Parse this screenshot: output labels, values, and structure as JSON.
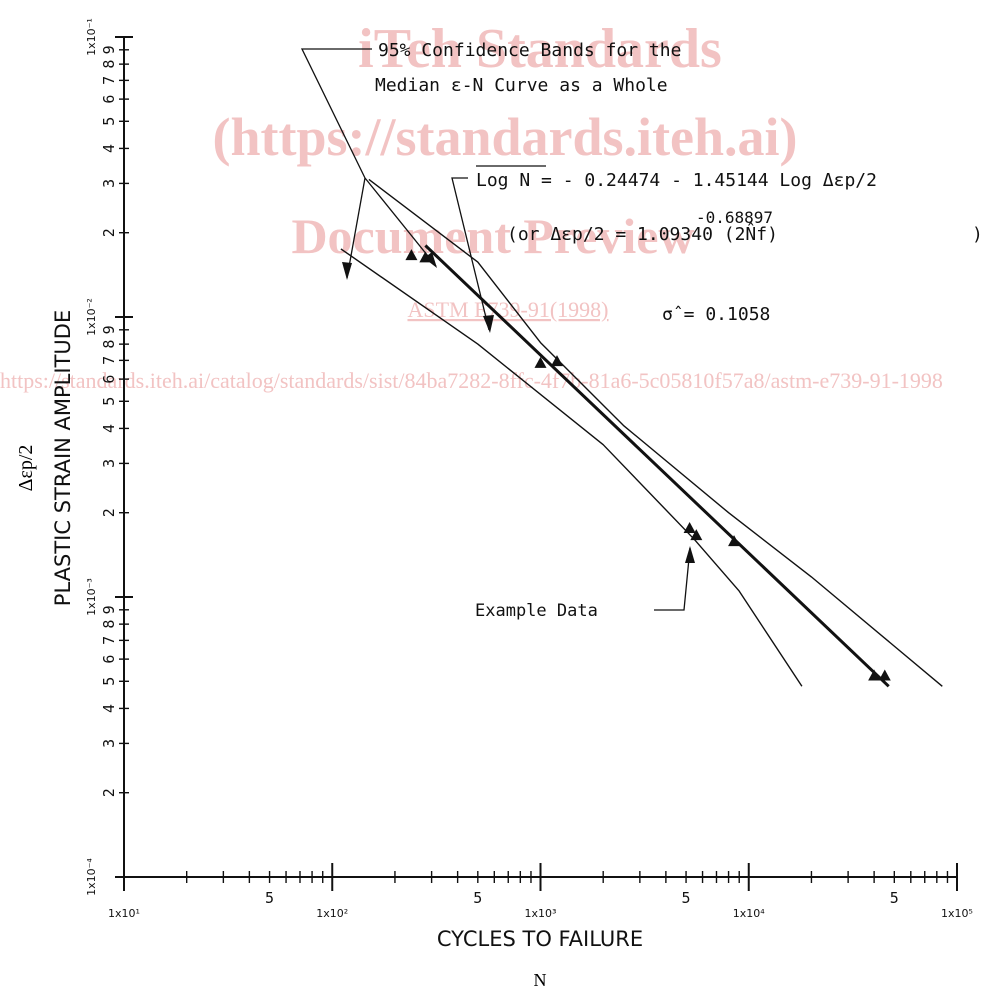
{
  "chart_data": {
    "type": "scatter",
    "x_scale": "log",
    "y_scale": "log",
    "xlim": [
      10,
      100000
    ],
    "ylim": [
      0.0001,
      0.1
    ],
    "xlabel": "CYCLES TO FAILURE",
    "xlabel_sub": "N",
    "ylabel": "PLASTIC STRAIN AMPLITUDE",
    "ylabel_symbol": "Δεp/2",
    "x_decade_labels": [
      "1x10¹",
      "1x10²",
      "1x10³",
      "1x10⁴",
      "1x10⁵"
    ],
    "y_decade_labels": [
      "1x10⁻⁴",
      "1x10⁻³",
      "1x10⁻²",
      "1x10⁻¹"
    ],
    "x_minor_label": "5",
    "y_minor_labels": [
      "2",
      "3",
      "4",
      "5",
      "6",
      "7",
      "8",
      "9"
    ],
    "series": [
      {
        "name": "Example Data",
        "kind": "points",
        "marker": "triangle",
        "points": [
          {
            "x": 240,
            "y": 0.0165
          },
          {
            "x": 280,
            "y": 0.0162
          },
          {
            "x": 1000,
            "y": 0.0068
          },
          {
            "x": 1200,
            "y": 0.0069
          },
          {
            "x": 5200,
            "y": 0.00175
          },
          {
            "x": 5600,
            "y": 0.00165
          },
          {
            "x": 8500,
            "y": 0.00157
          },
          {
            "x": 40000,
            "y": 0.00052
          },
          {
            "x": 45000,
            "y": 0.00052
          }
        ]
      },
      {
        "name": "Median ε-N Curve",
        "kind": "line",
        "points": [
          {
            "x": 280,
            "y": 0.018
          },
          {
            "x": 47000,
            "y": 0.00048
          }
        ]
      },
      {
        "name": "95% Confidence Bands (upper)",
        "kind": "band",
        "points": [
          {
            "x": 150,
            "y": 0.031
          },
          {
            "x": 500,
            "y": 0.0157
          },
          {
            "x": 1000,
            "y": 0.0081
          },
          {
            "x": 2500,
            "y": 0.0041
          },
          {
            "x": 8000,
            "y": 0.002
          },
          {
            "x": 20000,
            "y": 0.00118
          },
          {
            "x": 85000,
            "y": 0.00048
          }
        ]
      },
      {
        "name": "95% Confidence Bands (lower)",
        "kind": "band",
        "points": [
          {
            "x": 110,
            "y": 0.0175
          },
          {
            "x": 500,
            "y": 0.008
          },
          {
            "x": 2000,
            "y": 0.0035
          },
          {
            "x": 5500,
            "y": 0.0016
          },
          {
            "x": 9000,
            "y": 0.00105
          },
          {
            "x": 18000,
            "y": 0.00048
          }
        ]
      }
    ],
    "annotations": {
      "bands_line1": "95% Confidence Bands for the",
      "bands_line2": "Median ε-N Curve as a Whole",
      "equation_main": "Log N = - 0.24474 - 1.45144 Log Δεp/2",
      "equation_alt": "(or Δεp/2 = 1.09340 (2N̂f)",
      "equation_alt_exp": "-0.68897",
      "equation_alt_close": ")",
      "sigma": "σ̂ = 0.1058",
      "example_data": "Example Data"
    }
  },
  "watermark": {
    "line1": "iTeh Standards",
    "line2": "(https://standards.iteh.ai)",
    "line3": "Document Preview",
    "line4": "ASTM E739-91(1998)",
    "line5": "https://standards.iteh.ai/catalog/standards/sist/84ba7282-8ffc-4f7b-81a6-5c05810f57a8/astm-e739-91-1998",
    "color": "#cc2020"
  }
}
